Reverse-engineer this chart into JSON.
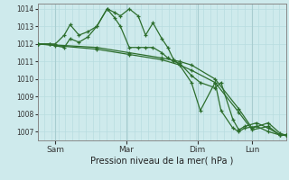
{
  "bg_color": "#ceeaec",
  "grid_color_minor": "#b8dde0",
  "grid_color_major": "#a8cdd0",
  "line_color": "#2d6e2d",
  "ylabel_min": 1006.5,
  "ylabel_max": 1014.3,
  "yticks": [
    1007,
    1008,
    1009,
    1010,
    1011,
    1012,
    1013,
    1014
  ],
  "xlabel": "Pression niveau de la mer( hPa )",
  "xtick_labels": [
    "Sam",
    "Mar",
    "Dim",
    "Lun"
  ],
  "xtick_positions": [
    12,
    60,
    108,
    145
  ],
  "total_points": 168,
  "series": [
    [
      [
        0,
        1012.0
      ],
      [
        8,
        1012.0
      ],
      [
        12,
        1012.0
      ],
      [
        18,
        1012.5
      ],
      [
        22,
        1013.1
      ],
      [
        28,
        1012.5
      ],
      [
        34,
        1012.7
      ],
      [
        40,
        1013.0
      ],
      [
        47,
        1014.0
      ],
      [
        52,
        1013.8
      ],
      [
        56,
        1013.6
      ],
      [
        62,
        1014.0
      ],
      [
        68,
        1013.6
      ],
      [
        73,
        1012.5
      ],
      [
        78,
        1013.2
      ],
      [
        84,
        1012.3
      ],
      [
        88,
        1011.8
      ],
      [
        92,
        1011.1
      ],
      [
        96,
        1010.8
      ],
      [
        104,
        1009.8
      ],
      [
        110,
        1008.2
      ],
      [
        120,
        1009.8
      ],
      [
        124,
        1008.2
      ],
      [
        132,
        1007.2
      ],
      [
        136,
        1007.0
      ],
      [
        140,
        1007.2
      ],
      [
        148,
        1007.3
      ],
      [
        156,
        1007.0
      ],
      [
        164,
        1006.8
      ],
      [
        168,
        1006.8
      ]
    ],
    [
      [
        0,
        1012.0
      ],
      [
        8,
        1012.0
      ],
      [
        12,
        1011.9
      ],
      [
        18,
        1011.8
      ],
      [
        22,
        1012.3
      ],
      [
        28,
        1012.1
      ],
      [
        34,
        1012.4
      ],
      [
        40,
        1013.0
      ],
      [
        47,
        1014.0
      ],
      [
        52,
        1013.5
      ],
      [
        56,
        1013.0
      ],
      [
        62,
        1011.8
      ],
      [
        68,
        1011.8
      ],
      [
        73,
        1011.8
      ],
      [
        78,
        1011.8
      ],
      [
        84,
        1011.5
      ],
      [
        88,
        1011.2
      ],
      [
        92,
        1011.0
      ],
      [
        96,
        1010.9
      ],
      [
        104,
        1010.2
      ],
      [
        110,
        1009.8
      ],
      [
        120,
        1009.5
      ],
      [
        124,
        1009.8
      ],
      [
        132,
        1007.7
      ],
      [
        136,
        1007.1
      ],
      [
        140,
        1007.3
      ],
      [
        148,
        1007.5
      ],
      [
        156,
        1007.2
      ],
      [
        164,
        1006.8
      ],
      [
        168,
        1006.8
      ]
    ],
    [
      [
        0,
        1012.0
      ],
      [
        40,
        1011.8
      ],
      [
        62,
        1011.5
      ],
      [
        84,
        1011.2
      ],
      [
        96,
        1011.0
      ],
      [
        104,
        1010.8
      ],
      [
        120,
        1010.0
      ],
      [
        136,
        1008.3
      ],
      [
        145,
        1007.2
      ],
      [
        156,
        1007.5
      ],
      [
        164,
        1006.9
      ],
      [
        168,
        1006.8
      ]
    ],
    [
      [
        0,
        1012.0
      ],
      [
        40,
        1011.7
      ],
      [
        62,
        1011.4
      ],
      [
        84,
        1011.1
      ],
      [
        96,
        1010.8
      ],
      [
        104,
        1010.5
      ],
      [
        120,
        1009.8
      ],
      [
        136,
        1008.1
      ],
      [
        145,
        1007.1
      ],
      [
        156,
        1007.3
      ],
      [
        164,
        1006.8
      ],
      [
        168,
        1006.8
      ]
    ]
  ]
}
